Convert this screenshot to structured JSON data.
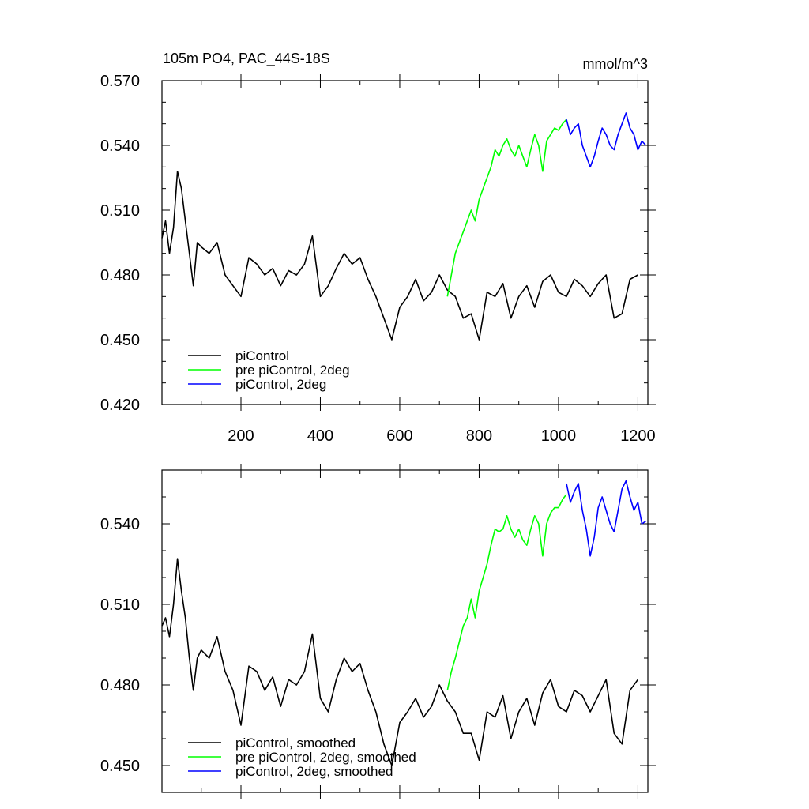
{
  "chart_data": [
    {
      "type": "line",
      "title": "105m PO4, PAC_44S-18S",
      "units": "mmol/m^3",
      "xlim": [
        1,
        1225
      ],
      "ylim": [
        0.42,
        0.57
      ],
      "x_ticks": [
        200,
        400,
        600,
        800,
        1000,
        1200
      ],
      "x_tick_labels": [
        "200",
        "400",
        "600",
        "800",
        "1000",
        "1200"
      ],
      "y_ticks": [
        0.42,
        0.45,
        0.48,
        0.51,
        0.54,
        0.57
      ],
      "y_tick_labels": [
        "0.420",
        "0.450",
        "0.480",
        "0.510",
        "0.540",
        "0.570"
      ],
      "legend_position": "bottom-left",
      "series": [
        {
          "name": "piControl",
          "color": "#000000",
          "x": [
            1,
            10,
            20,
            30,
            40,
            50,
            60,
            70,
            80,
            90,
            100,
            120,
            140,
            160,
            180,
            200,
            220,
            240,
            260,
            280,
            300,
            320,
            340,
            360,
            380,
            400,
            420,
            440,
            460,
            480,
            500,
            520,
            540,
            560,
            580,
            600,
            620,
            640,
            660,
            680,
            700,
            720,
            740,
            760,
            780,
            800,
            820,
            840,
            860,
            880,
            900,
            920,
            940,
            960,
            980,
            1000,
            1020,
            1040,
            1060,
            1080,
            1100,
            1120,
            1140,
            1160,
            1180,
            1200
          ],
          "y": [
            0.497,
            0.505,
            0.49,
            0.502,
            0.528,
            0.52,
            0.505,
            0.49,
            0.475,
            0.495,
            0.493,
            0.49,
            0.495,
            0.48,
            0.475,
            0.47,
            0.488,
            0.485,
            0.48,
            0.483,
            0.475,
            0.482,
            0.48,
            0.485,
            0.498,
            0.47,
            0.475,
            0.483,
            0.49,
            0.485,
            0.488,
            0.478,
            0.47,
            0.46,
            0.45,
            0.465,
            0.47,
            0.478,
            0.468,
            0.472,
            0.48,
            0.473,
            0.47,
            0.46,
            0.462,
            0.45,
            0.472,
            0.47,
            0.476,
            0.46,
            0.47,
            0.475,
            0.465,
            0.477,
            0.48,
            0.472,
            0.47,
            0.478,
            0.475,
            0.47,
            0.476,
            0.48,
            0.46,
            0.462,
            0.478,
            0.48
          ]
        },
        {
          "name": "pre piControl, 2deg",
          "color": "#00ff00",
          "x": [
            720,
            730,
            740,
            750,
            760,
            770,
            780,
            790,
            800,
            810,
            820,
            830,
            840,
            850,
            860,
            870,
            880,
            890,
            900,
            910,
            920,
            930,
            940,
            950,
            960,
            970,
            980,
            990,
            1000,
            1010,
            1020
          ],
          "y": [
            0.47,
            0.48,
            0.49,
            0.495,
            0.5,
            0.505,
            0.51,
            0.505,
            0.515,
            0.52,
            0.525,
            0.53,
            0.538,
            0.535,
            0.54,
            0.543,
            0.538,
            0.535,
            0.54,
            0.535,
            0.53,
            0.538,
            0.545,
            0.54,
            0.528,
            0.542,
            0.545,
            0.548,
            0.547,
            0.55,
            0.552
          ]
        },
        {
          "name": "piControl, 2deg",
          "color": "#0000ff",
          "x": [
            1020,
            1030,
            1040,
            1050,
            1060,
            1070,
            1080,
            1090,
            1100,
            1110,
            1120,
            1130,
            1140,
            1150,
            1160,
            1170,
            1180,
            1190,
            1200,
            1210,
            1220
          ],
          "y": [
            0.552,
            0.545,
            0.548,
            0.55,
            0.54,
            0.535,
            0.53,
            0.535,
            0.542,
            0.548,
            0.545,
            0.54,
            0.538,
            0.545,
            0.55,
            0.555,
            0.548,
            0.545,
            0.538,
            0.542,
            0.54
          ]
        }
      ]
    },
    {
      "type": "line",
      "title": "",
      "xlim": [
        1,
        1225
      ],
      "ylim": [
        0.44,
        0.56
      ],
      "x_ticks": [
        200,
        400,
        600,
        800,
        1000,
        1200
      ],
      "y_ticks": [
        0.45,
        0.48,
        0.51,
        0.54
      ],
      "y_tick_labels": [
        "0.450",
        "0.480",
        "0.510",
        "0.540"
      ],
      "legend_position": "bottom-left",
      "series": [
        {
          "name": "piControl, smoothed",
          "color": "#000000",
          "x": [
            1,
            10,
            20,
            30,
            40,
            50,
            60,
            70,
            80,
            90,
            100,
            120,
            140,
            160,
            180,
            200,
            220,
            240,
            260,
            280,
            300,
            320,
            340,
            360,
            380,
            400,
            420,
            440,
            460,
            480,
            500,
            520,
            540,
            560,
            580,
            600,
            620,
            640,
            660,
            680,
            700,
            720,
            740,
            760,
            780,
            800,
            820,
            840,
            860,
            880,
            900,
            920,
            940,
            960,
            980,
            1000,
            1020,
            1040,
            1060,
            1080,
            1100,
            1120,
            1140,
            1160,
            1180,
            1200
          ],
          "y": [
            0.502,
            0.505,
            0.498,
            0.51,
            0.527,
            0.515,
            0.505,
            0.49,
            0.478,
            0.49,
            0.493,
            0.49,
            0.498,
            0.485,
            0.478,
            0.465,
            0.487,
            0.485,
            0.478,
            0.483,
            0.472,
            0.482,
            0.48,
            0.485,
            0.499,
            0.475,
            0.47,
            0.482,
            0.49,
            0.485,
            0.488,
            0.478,
            0.47,
            0.458,
            0.45,
            0.466,
            0.47,
            0.475,
            0.468,
            0.472,
            0.48,
            0.474,
            0.47,
            0.462,
            0.462,
            0.452,
            0.47,
            0.468,
            0.476,
            0.46,
            0.47,
            0.475,
            0.465,
            0.477,
            0.482,
            0.472,
            0.47,
            0.478,
            0.476,
            0.47,
            0.476,
            0.482,
            0.462,
            0.458,
            0.478,
            0.482
          ]
        },
        {
          "name": "pre piControl, 2deg, smoothed",
          "color": "#00ff00",
          "x": [
            720,
            730,
            740,
            750,
            760,
            770,
            780,
            790,
            800,
            810,
            820,
            830,
            840,
            850,
            860,
            870,
            880,
            890,
            900,
            910,
            920,
            930,
            940,
            950,
            960,
            970,
            980,
            990,
            1000,
            1010,
            1020
          ],
          "y": [
            0.478,
            0.485,
            0.49,
            0.496,
            0.502,
            0.505,
            0.512,
            0.505,
            0.515,
            0.52,
            0.525,
            0.532,
            0.538,
            0.537,
            0.538,
            0.543,
            0.538,
            0.535,
            0.538,
            0.534,
            0.532,
            0.538,
            0.543,
            0.54,
            0.528,
            0.54,
            0.544,
            0.546,
            0.546,
            0.549,
            0.551
          ]
        },
        {
          "name": "piControl, 2deg, smoothed",
          "color": "#0000ff",
          "x": [
            1020,
            1030,
            1040,
            1050,
            1060,
            1070,
            1080,
            1090,
            1100,
            1110,
            1120,
            1130,
            1140,
            1150,
            1160,
            1170,
            1180,
            1190,
            1200,
            1210,
            1220
          ],
          "y": [
            0.555,
            0.548,
            0.552,
            0.555,
            0.545,
            0.538,
            0.528,
            0.535,
            0.546,
            0.55,
            0.545,
            0.54,
            0.537,
            0.545,
            0.553,
            0.556,
            0.55,
            0.545,
            0.548,
            0.54,
            0.541
          ]
        }
      ]
    }
  ]
}
